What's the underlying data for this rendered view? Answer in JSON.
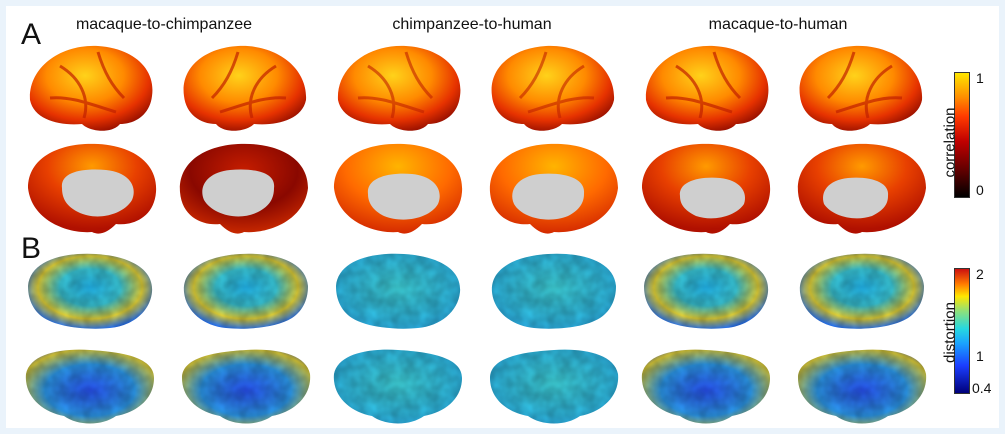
{
  "panel_a": {
    "letter": "A",
    "columns": [
      "macaque-to-chimpanzee",
      "chimpanzee-to-human",
      "macaque-to-human"
    ]
  },
  "panel_b": {
    "letter": "B"
  },
  "colorbars": {
    "correlation": {
      "label": "correlation",
      "max": "1",
      "min": "0"
    },
    "distortion": {
      "label": "distortion",
      "max": "2",
      "mid": "1",
      "min": "0.4"
    }
  },
  "colors": {
    "background": "#eaf3fb",
    "medial_wall": "#cfcfcf"
  }
}
